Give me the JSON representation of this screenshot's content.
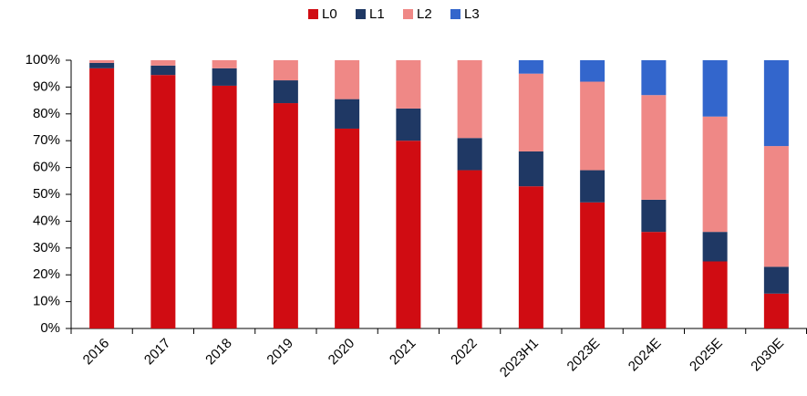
{
  "chart_data": {
    "type": "stacked_bar",
    "categories": [
      "2016",
      "2017",
      "2018",
      "2019",
      "2020",
      "2021",
      "2022",
      "2023H1",
      "2023E",
      "2024E",
      "2025E",
      "2030E"
    ],
    "series": [
      {
        "name": "L0",
        "color": "#d00c12",
        "values": [
          97,
          94.5,
          90.5,
          84,
          74.5,
          70,
          59,
          53,
          47,
          36,
          25,
          13
        ]
      },
      {
        "name": "L1",
        "color": "#1f3864",
        "values": [
          2,
          3.5,
          6.5,
          8.5,
          11,
          12,
          12,
          13,
          12,
          12,
          11,
          10
        ]
      },
      {
        "name": "L2",
        "color": "#ef8886",
        "values": [
          1,
          2,
          3,
          7.5,
          14.5,
          18,
          29,
          29,
          33,
          39,
          43,
          45
        ]
      },
      {
        "name": "L3",
        "color": "#3366cc",
        "values": [
          0,
          0,
          0,
          0,
          0,
          0,
          0,
          5,
          8,
          13,
          21,
          32
        ]
      }
    ],
    "ylim": [
      0,
      100
    ],
    "yticks": [
      {
        "value": 0,
        "label": "0%"
      },
      {
        "value": 10,
        "label": "10%"
      },
      {
        "value": 20,
        "label": "20%"
      },
      {
        "value": 30,
        "label": "30%"
      },
      {
        "value": 40,
        "label": "40%"
      },
      {
        "value": 50,
        "label": "50%"
      },
      {
        "value": 60,
        "label": "60%"
      },
      {
        "value": 70,
        "label": "70%"
      },
      {
        "value": 80,
        "label": "80%"
      },
      {
        "value": 90,
        "label": "90%"
      },
      {
        "value": 100,
        "label": "100%"
      }
    ],
    "legend": "top"
  }
}
